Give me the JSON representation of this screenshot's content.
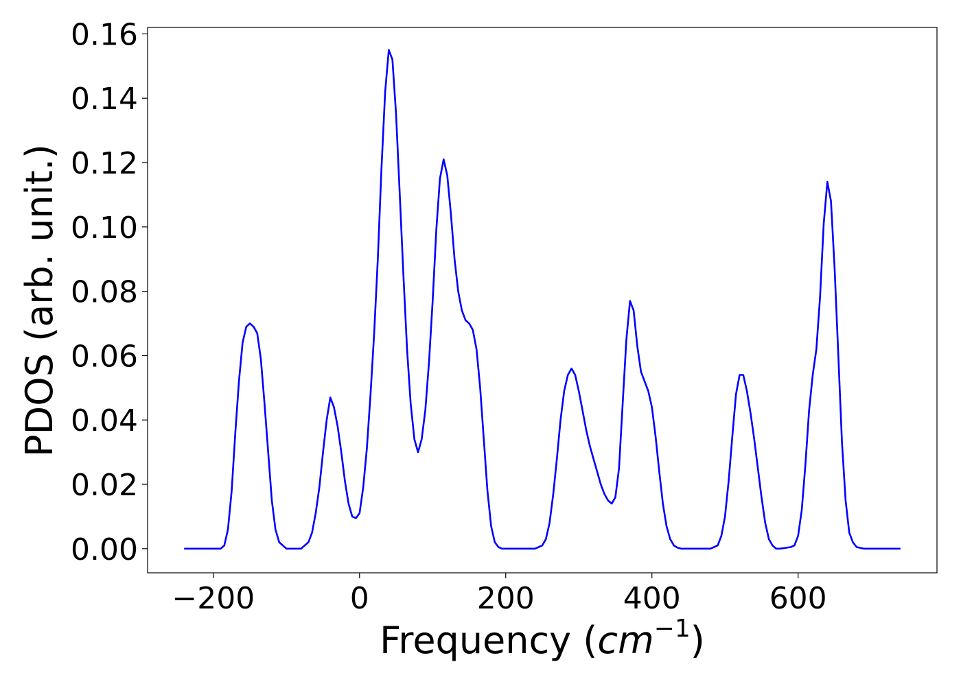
{
  "chart_data": {
    "type": "line",
    "xlabel_prefix": "Frequency (",
    "xlabel_unit": "cm",
    "xlabel_exponent": "−1",
    "xlabel_suffix": ")",
    "ylabel": "PDOS (arb. unit.)",
    "xlim": [
      -290,
      790
    ],
    "ylim": [
      -0.0075,
      0.162
    ],
    "xticks": [
      -200,
      0,
      200,
      400,
      600
    ],
    "xtick_labels": [
      "−200",
      "0",
      "200",
      "400",
      "600"
    ],
    "yticks": [
      0,
      0.02,
      0.04,
      0.06,
      0.08,
      0.1,
      0.12,
      0.14,
      0.16
    ],
    "ytick_labels": [
      "0.00",
      "0.02",
      "0.04",
      "0.06",
      "0.08",
      "0.10",
      "0.12",
      "0.14",
      "0.16"
    ],
    "grid": false,
    "series": [
      {
        "color": "#0000ff",
        "x": [
          -240,
          -190,
          -185,
          -180,
          -175,
          -170,
          -165,
          -160,
          -155,
          -150,
          -145,
          -140,
          -135,
          -130,
          -125,
          -120,
          -115,
          -110,
          -100,
          -80,
          -75,
          -70,
          -65,
          -60,
          -55,
          -50,
          -45,
          -40,
          -35,
          -30,
          -25,
          -20,
          -15,
          -10,
          -5,
          0,
          5,
          10,
          15,
          20,
          25,
          30,
          35,
          40,
          45,
          50,
          55,
          60,
          65,
          70,
          75,
          80,
          85,
          90,
          95,
          100,
          105,
          110,
          115,
          120,
          125,
          130,
          135,
          140,
          145,
          150,
          155,
          160,
          165,
          170,
          175,
          180,
          185,
          190,
          195,
          200,
          210,
          240,
          245,
          250,
          255,
          260,
          265,
          270,
          275,
          280,
          285,
          290,
          295,
          300,
          305,
          310,
          315,
          320,
          325,
          330,
          335,
          340,
          345,
          350,
          355,
          360,
          365,
          370,
          375,
          380,
          385,
          390,
          395,
          400,
          405,
          410,
          415,
          420,
          425,
          430,
          435,
          440,
          480,
          485,
          490,
          495,
          500,
          505,
          510,
          515,
          520,
          525,
          530,
          535,
          540,
          545,
          550,
          555,
          560,
          565,
          570,
          575,
          590,
          595,
          600,
          605,
          610,
          615,
          620,
          625,
          630,
          635,
          640,
          645,
          650,
          655,
          660,
          665,
          670,
          675,
          680,
          690,
          740
        ],
        "y": [
          0,
          0,
          0.001,
          0.006,
          0.018,
          0.036,
          0.052,
          0.064,
          0.069,
          0.07,
          0.069,
          0.067,
          0.059,
          0.045,
          0.03,
          0.015,
          0.006,
          0.002,
          0,
          0,
          0.001,
          0.002,
          0.005,
          0.011,
          0.019,
          0.03,
          0.04,
          0.047,
          0.044,
          0.038,
          0.03,
          0.021,
          0.014,
          0.01,
          0.0095,
          0.011,
          0.019,
          0.031,
          0.048,
          0.067,
          0.09,
          0.118,
          0.142,
          0.155,
          0.152,
          0.135,
          0.11,
          0.085,
          0.062,
          0.045,
          0.034,
          0.03,
          0.034,
          0.043,
          0.058,
          0.077,
          0.099,
          0.115,
          0.121,
          0.116,
          0.104,
          0.09,
          0.08,
          0.074,
          0.071,
          0.07,
          0.068,
          0.062,
          0.05,
          0.034,
          0.018,
          0.007,
          0.002,
          0.0005,
          0,
          0,
          0,
          0,
          0.0005,
          0.001,
          0.003,
          0.008,
          0.017,
          0.028,
          0.04,
          0.049,
          0.054,
          0.056,
          0.054,
          0.049,
          0.043,
          0.037,
          0.032,
          0.028,
          0.024,
          0.02,
          0.017,
          0.015,
          0.014,
          0.016,
          0.025,
          0.045,
          0.065,
          0.077,
          0.074,
          0.063,
          0.055,
          0.052,
          0.049,
          0.044,
          0.035,
          0.024,
          0.014,
          0.007,
          0.003,
          0.001,
          0.0003,
          0,
          0,
          0.0005,
          0.001,
          0.004,
          0.01,
          0.021,
          0.035,
          0.048,
          0.054,
          0.054,
          0.049,
          0.042,
          0.034,
          0.025,
          0.016,
          0.008,
          0.003,
          0.001,
          0,
          0,
          0.0005,
          0.001,
          0.004,
          0.012,
          0.026,
          0.043,
          0.054,
          0.062,
          0.078,
          0.101,
          0.114,
          0.108,
          0.087,
          0.06,
          0.033,
          0.015,
          0.005,
          0.002,
          0.0005,
          0,
          0
        ]
      }
    ]
  }
}
